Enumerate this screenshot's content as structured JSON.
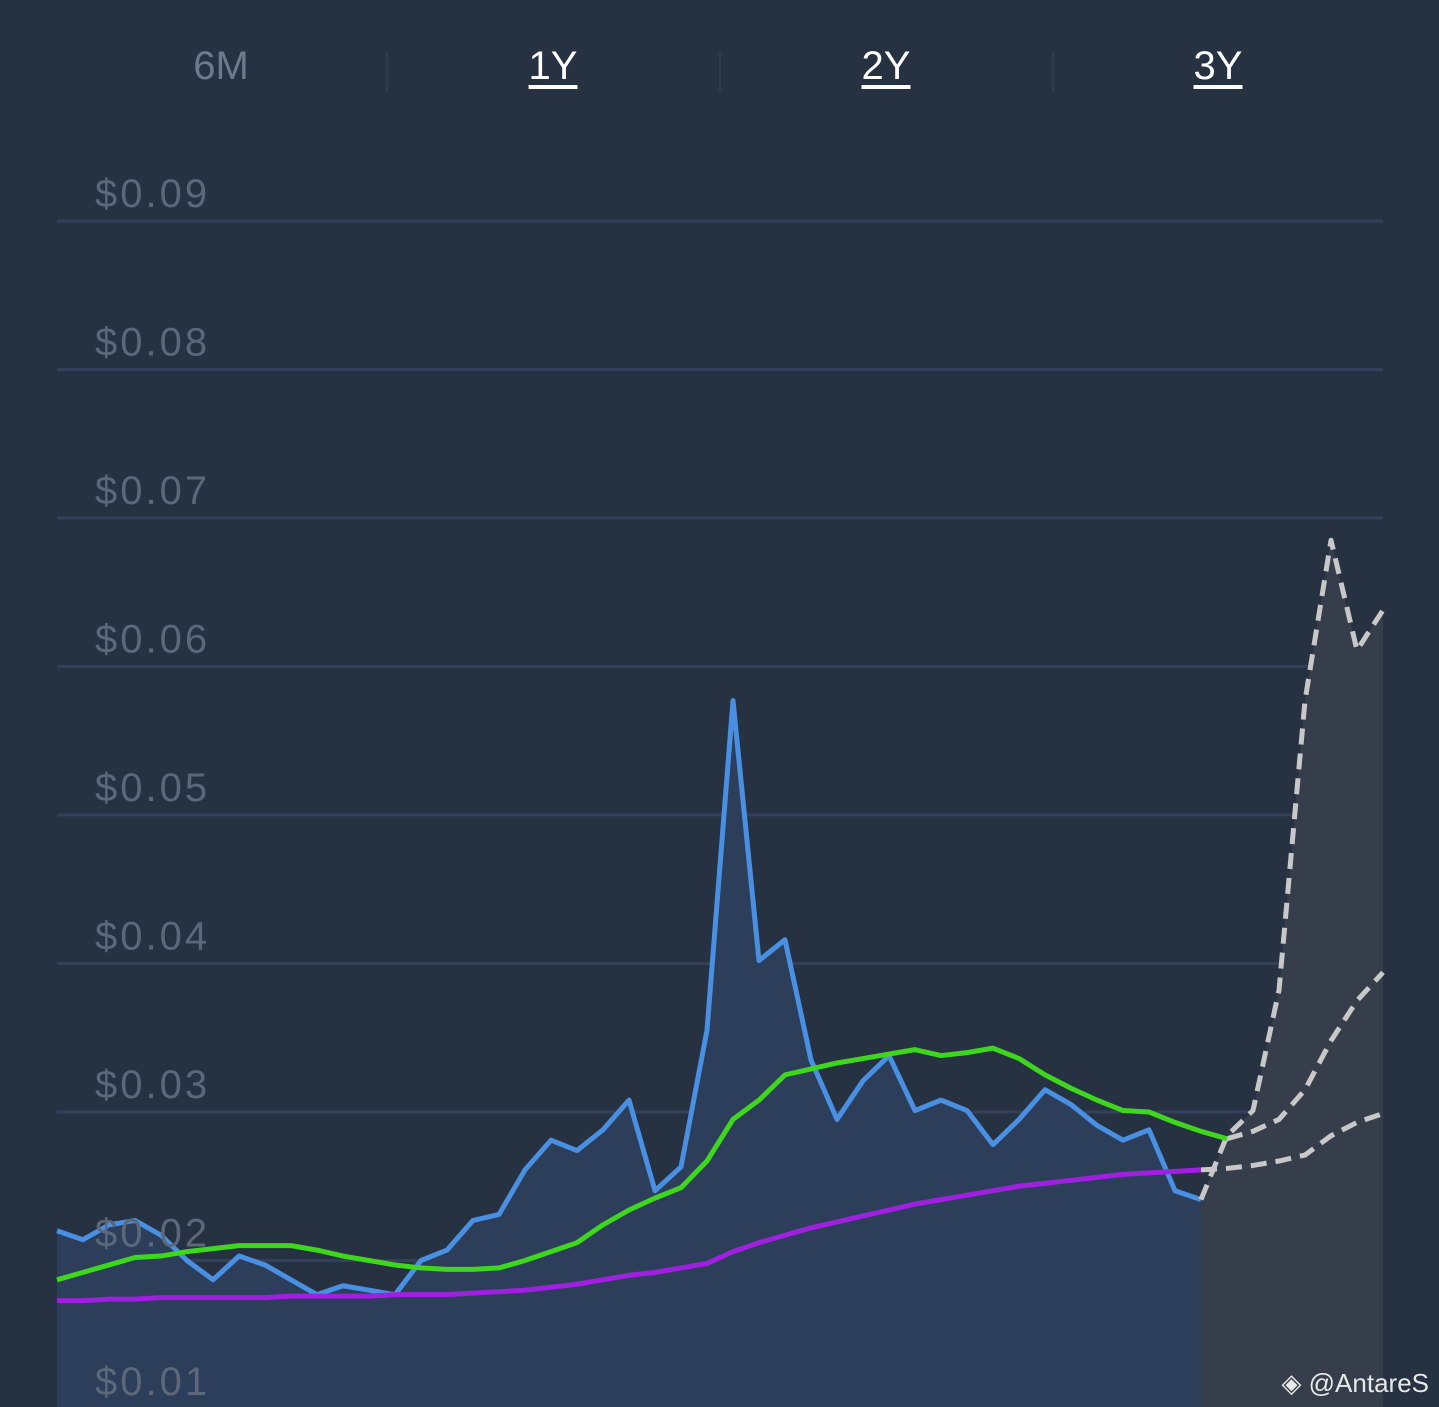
{
  "tabs": [
    {
      "label": "6M",
      "active": false
    },
    {
      "label": "1Y",
      "active": true
    },
    {
      "label": "2Y",
      "active": true
    },
    {
      "label": "3Y",
      "active": true
    }
  ],
  "watermark": "@AntareS",
  "chart_data": {
    "type": "line",
    "grid": true,
    "ylim": [
      0.01,
      0.09
    ],
    "yticks": [
      {
        "value": 0.01,
        "label": "$0.01"
      },
      {
        "value": 0.02,
        "label": "$0.02"
      },
      {
        "value": 0.03,
        "label": "$0.03"
      },
      {
        "value": 0.04,
        "label": "$0.04"
      },
      {
        "value": 0.05,
        "label": "$0.05"
      },
      {
        "value": 0.06,
        "label": "$0.06"
      },
      {
        "value": 0.07,
        "label": "$0.07"
      },
      {
        "value": 0.08,
        "label": "$0.08"
      },
      {
        "value": 0.09,
        "label": "$0.09"
      }
    ],
    "series": [
      {
        "color": "#4a90e2",
        "area": "#2c3e5a",
        "dashed": false,
        "values": [
          0.022,
          0.0214,
          0.0224,
          0.0227,
          0.0217,
          0.02,
          0.0187,
          0.0203,
          0.0197,
          0.0187,
          0.0177,
          0.0183,
          0.018,
          0.0177,
          0.02,
          0.0207,
          0.0227,
          0.0231,
          0.0261,
          0.0281,
          0.0274,
          0.0288,
          0.0308,
          0.0247,
          0.0263,
          0.0355,
          0.0577,
          0.0402,
          0.0416,
          0.0335,
          0.0295,
          0.0321,
          0.0338,
          0.0301,
          0.0308,
          0.0301,
          0.0278,
          0.0295,
          0.0315,
          0.0305,
          0.0291,
          0.0281,
          0.0288,
          0.0247,
          0.0241,
          null,
          null,
          null,
          null,
          null,
          null,
          null
        ]
      },
      {
        "color": "#c8c8c8",
        "area": "#363e4b",
        "dashed": true,
        "values": [
          null,
          null,
          null,
          null,
          null,
          null,
          null,
          null,
          null,
          null,
          null,
          null,
          null,
          null,
          null,
          null,
          null,
          null,
          null,
          null,
          null,
          null,
          null,
          null,
          null,
          null,
          null,
          null,
          null,
          null,
          null,
          null,
          null,
          null,
          null,
          null,
          null,
          null,
          null,
          null,
          null,
          null,
          null,
          null,
          0.0241,
          0.0284,
          0.0301,
          0.0382,
          0.0577,
          0.0685,
          0.0611,
          0.0638
        ]
      },
      {
        "color": "#c8c8c8",
        "dashed": true,
        "values": [
          null,
          null,
          null,
          null,
          null,
          null,
          null,
          null,
          null,
          null,
          null,
          null,
          null,
          null,
          null,
          null,
          null,
          null,
          null,
          null,
          null,
          null,
          null,
          null,
          null,
          null,
          null,
          null,
          null,
          null,
          null,
          null,
          null,
          null,
          null,
          null,
          null,
          null,
          null,
          null,
          null,
          null,
          null,
          null,
          null,
          0.0282,
          0.0287,
          0.0295,
          0.0315,
          0.0348,
          0.0375,
          0.0394
        ]
      },
      {
        "color": "#c8c8c8",
        "dashed": true,
        "values": [
          null,
          null,
          null,
          null,
          null,
          null,
          null,
          null,
          null,
          null,
          null,
          null,
          null,
          null,
          null,
          null,
          null,
          null,
          null,
          null,
          null,
          null,
          null,
          null,
          null,
          null,
          null,
          null,
          null,
          null,
          null,
          null,
          null,
          null,
          null,
          null,
          null,
          null,
          null,
          null,
          null,
          null,
          null,
          null,
          0.0261,
          0.0262,
          0.0264,
          0.0267,
          0.0271,
          0.0284,
          0.0293,
          0.0299
        ]
      },
      {
        "color": "#3fd61e",
        "dashed": false,
        "values": [
          0.0187,
          0.0192,
          0.0197,
          0.0202,
          0.0203,
          0.0206,
          0.0208,
          0.021,
          0.021,
          0.021,
          0.0207,
          0.0203,
          0.02,
          0.0197,
          0.0195,
          0.0194,
          0.0194,
          0.0195,
          0.02,
          0.0206,
          0.0212,
          0.0224,
          0.0234,
          0.0242,
          0.0249,
          0.0267,
          0.0295,
          0.0308,
          0.0325,
          0.0329,
          0.0333,
          0.0336,
          0.0339,
          0.0342,
          0.0338,
          0.034,
          0.0343,
          0.0336,
          0.0325,
          0.0316,
          0.0308,
          0.0301,
          0.03,
          0.0293,
          0.0287,
          0.0282,
          null,
          null,
          null,
          null,
          null,
          null
        ]
      },
      {
        "color": "#a020e0",
        "dashed": false,
        "values": [
          0.0173,
          0.0173,
          0.0174,
          0.0174,
          0.0175,
          0.0175,
          0.0175,
          0.0175,
          0.0175,
          0.0176,
          0.0176,
          0.0176,
          0.0176,
          0.0177,
          0.0177,
          0.0177,
          0.0178,
          0.0179,
          0.018,
          0.0182,
          0.0184,
          0.0187,
          0.019,
          0.0192,
          0.0195,
          0.0198,
          0.0206,
          0.0212,
          0.0217,
          0.0222,
          0.0226,
          0.023,
          0.0234,
          0.0238,
          0.0241,
          0.0244,
          0.0247,
          0.025,
          0.0252,
          0.0254,
          0.0256,
          0.0258,
          0.0259,
          0.026,
          0.0261,
          null,
          null,
          null,
          null,
          null,
          null,
          null
        ]
      }
    ]
  }
}
